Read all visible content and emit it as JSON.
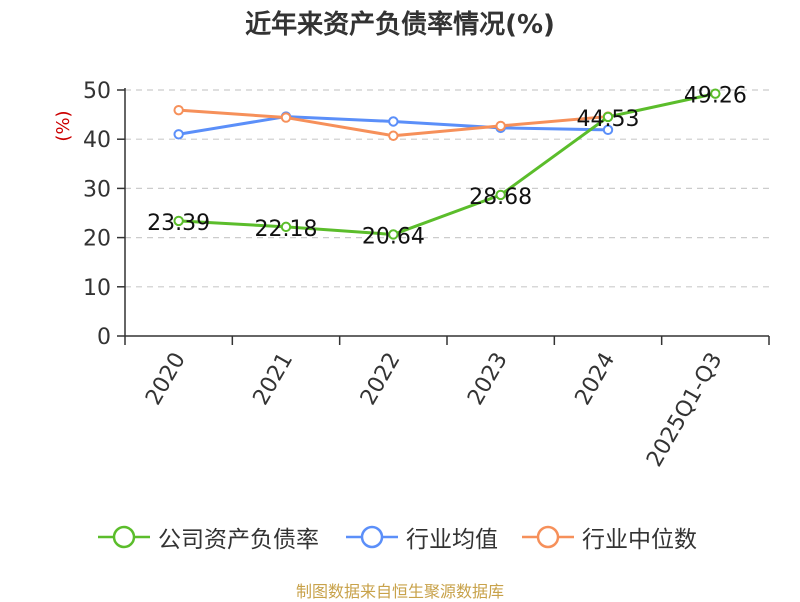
{
  "title": "近年来资产负债率情况(%)",
  "source": "制图数据来自恒生聚源数据库",
  "colors": {
    "company": "#5bbd2b",
    "industry_avg": "#5b8ff9",
    "industry_median": "#f6905a",
    "ylabel": "#cc0000",
    "grid": "#cccccc",
    "axis": "#333333",
    "source": "#c8a24a"
  },
  "chart_data": {
    "type": "line",
    "ylabel": "(%)",
    "xlabel": "",
    "ylim": [
      0,
      50
    ],
    "yticks": [
      0,
      10,
      20,
      30,
      40,
      50
    ],
    "grid": true,
    "legend_position": "bottom",
    "categories": [
      "2020",
      "2021",
      "2022",
      "2023",
      "2024",
      "2025Q1-Q3"
    ],
    "series": [
      {
        "name": "公司资产负债率",
        "color_key": "company",
        "values": [
          23.39,
          22.18,
          20.64,
          28.68,
          44.53,
          49.26
        ],
        "labels": [
          "23.39",
          "22.18",
          "20.64",
          "28.68",
          "44.53",
          "49.26"
        ]
      },
      {
        "name": "行业均值",
        "color_key": "industry_avg",
        "values": [
          41.0,
          44.6,
          43.6,
          42.3,
          41.9,
          null
        ]
      },
      {
        "name": "行业中位数",
        "color_key": "industry_median",
        "values": [
          45.9,
          44.4,
          40.7,
          42.7,
          44.6,
          null
        ]
      }
    ]
  }
}
